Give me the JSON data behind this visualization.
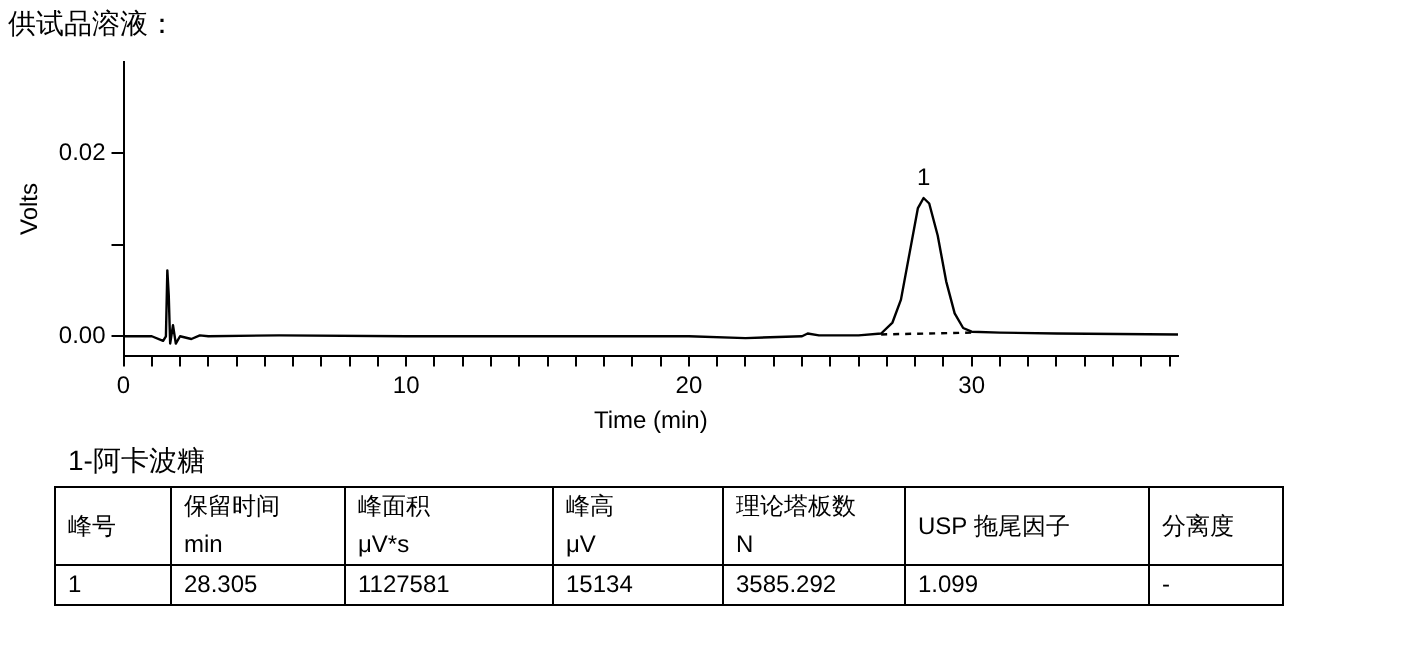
{
  "chart_data": {
    "type": "line",
    "title": "供试品溶液：",
    "xlabel": "Time (min)",
    "ylabel": "Volts",
    "xlim": [
      0,
      37.3
    ],
    "xticks": [
      0,
      {
        "value": 1,
        "label": null
      },
      {
        "value": 2,
        "label": null
      },
      {
        "value": 3,
        "label": null
      },
      {
        "value": 4,
        "label": null
      },
      {
        "value": 5,
        "label": null
      },
      {
        "value": 6,
        "label": null
      },
      {
        "value": 7,
        "label": null
      },
      {
        "value": 8,
        "label": null
      },
      {
        "value": 9,
        "label": null
      },
      10,
      {
        "value": 11,
        "label": null
      },
      {
        "value": 12,
        "label": null
      },
      {
        "value": 13,
        "label": null
      },
      {
        "value": 14,
        "label": null
      },
      {
        "value": 15,
        "label": null
      },
      {
        "value": 16,
        "label": null
      },
      {
        "value": 17,
        "label": null
      },
      {
        "value": 18,
        "label": null
      },
      {
        "value": 19,
        "label": null
      },
      20,
      {
        "value": 21,
        "label": null
      },
      {
        "value": 22,
        "label": null
      },
      {
        "value": 23,
        "label": null
      },
      {
        "value": 24,
        "label": null
      },
      {
        "value": 25,
        "label": null
      },
      {
        "value": 26,
        "label": null
      },
      {
        "value": 27,
        "label": null
      },
      {
        "value": 28,
        "label": null
      },
      {
        "value": 29,
        "label": null
      },
      30,
      {
        "value": 31,
        "label": null
      },
      {
        "value": 32,
        "label": null
      },
      {
        "value": 33,
        "label": null
      },
      {
        "value": 34,
        "label": null
      },
      {
        "value": 35,
        "label": null
      },
      {
        "value": 36,
        "label": null
      },
      {
        "value": 37,
        "label": null
      }
    ],
    "ylim": [
      -0.0022,
      0.03
    ],
    "yticks": [
      {
        "value": 0,
        "label": "0.00"
      },
      {
        "value": 0.01,
        "label": null
      },
      {
        "value": 0.02,
        "label": "0.02"
      }
    ],
    "grid": false,
    "legend": false,
    "marker": "none",
    "series": [
      {
        "color": "#000000",
        "line_style": "solid",
        "x": [
          0,
          1.0,
          1.4,
          1.5,
          1.55,
          1.6,
          1.65,
          1.75,
          1.85,
          2.0,
          2.4,
          2.7,
          3,
          5.5,
          10,
          20,
          22,
          24,
          24.2,
          24.6,
          26,
          26.8,
          27.2,
          27.5,
          27.8,
          28.1,
          28.3,
          28.5,
          28.8,
          29.1,
          29.4,
          29.7,
          30,
          31,
          33,
          37.3
        ],
        "values": [
          0,
          0,
          -0.0005,
          0,
          0.0072,
          0.0045,
          -0.0008,
          0.0012,
          -0.0008,
          0,
          -0.0003,
          0.0001,
          0,
          0.0001,
          0,
          0,
          -0.0002,
          0,
          0.0003,
          0.0001,
          0.0001,
          0.0003,
          0.0015,
          0.004,
          0.009,
          0.014,
          0.0151,
          0.0145,
          0.011,
          0.006,
          0.0025,
          0.0009,
          0.0005,
          0.0004,
          0.0003,
          0.0002
        ]
      },
      {
        "color": "#000000",
        "line_style": "dashed",
        "x": [
          26.8,
          30
        ],
        "values": [
          0.0002,
          0.0004
        ]
      }
    ],
    "annotations": [
      {
        "text": "1",
        "x": 28.3,
        "y": 0.0151
      },
      "1-阿卡波糖",
      "峰号",
      "保留时间\nmin",
      "峰面积\nμV*s",
      "峰高\nμV",
      "理论塔板数\nN",
      "USP 拖尾因子",
      "分离度",
      "1",
      "28.305",
      "1127581",
      "15134",
      "3585.292",
      "1.099",
      "-"
    ]
  }
}
